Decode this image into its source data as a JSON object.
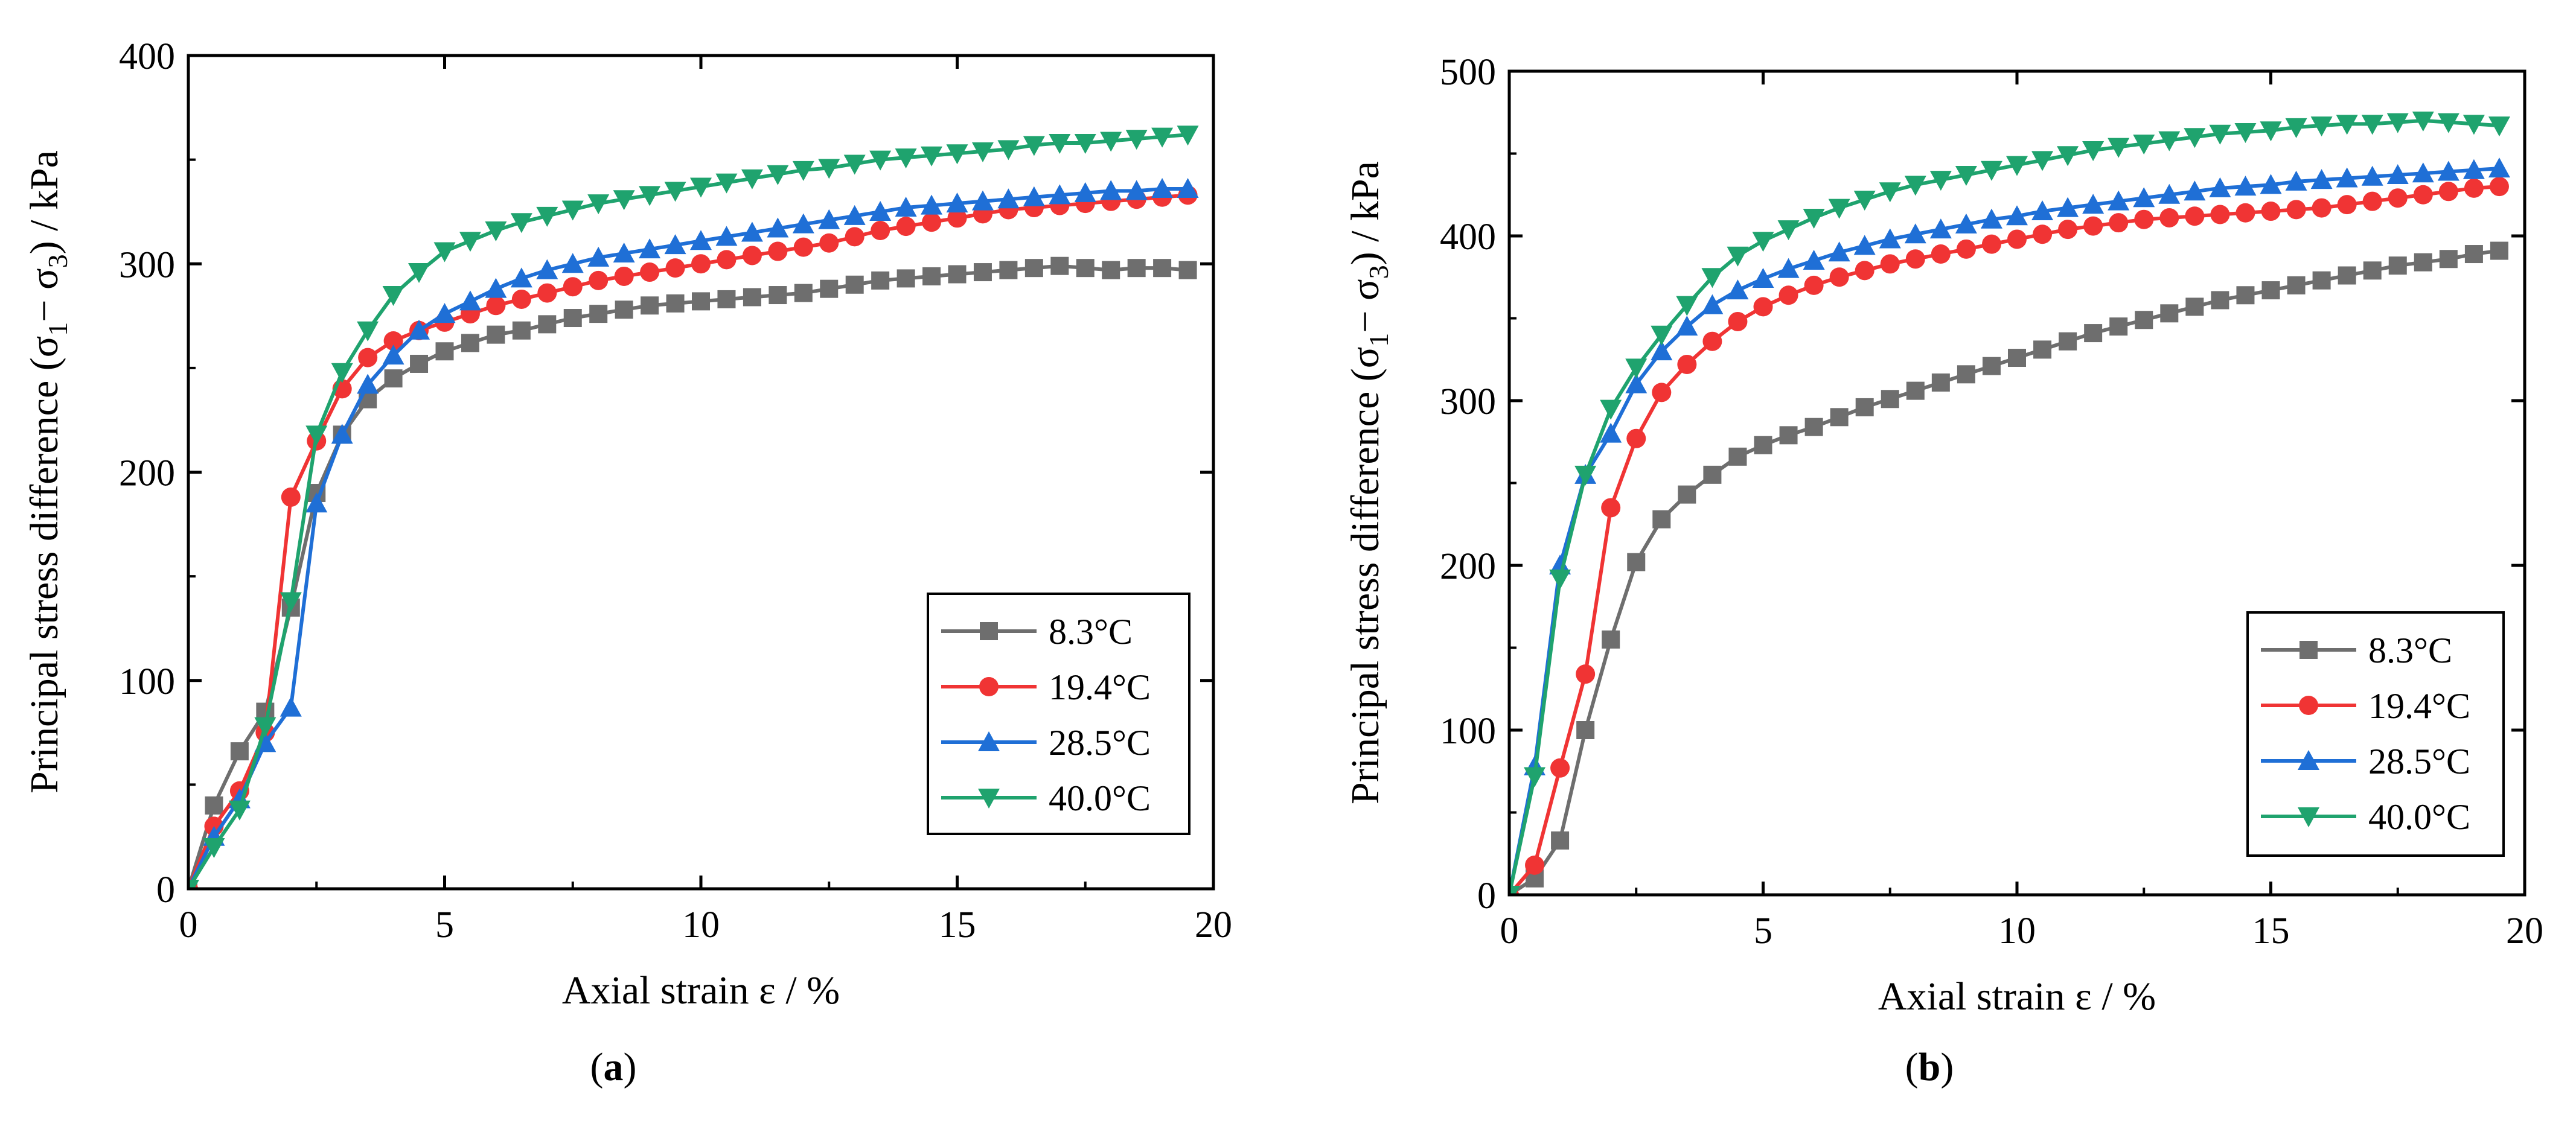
{
  "chart_data": [
    {
      "type": "line",
      "panel": "a",
      "panel_label_open": "(",
      "panel_label_letter": "a",
      "panel_label_close": ")",
      "xlabel": "Axial strain ε / %",
      "ylabel_prefix": "Principal stress difference (σ",
      "ylabel_sub1": "1",
      "ylabel_mid": "− σ",
      "ylabel_sub2": "3",
      "ylabel_suffix": ") / kPa",
      "xlim": [
        0,
        20
      ],
      "ylim": [
        0,
        400
      ],
      "xticks": [
        0,
        5,
        10,
        15,
        20
      ],
      "yticks": [
        0,
        100,
        200,
        300,
        400
      ],
      "legend_position": "lower-right",
      "series": [
        {
          "name": "8.3°C",
          "color": "#6e6e6e",
          "marker": "square",
          "x": [
            0,
            0.5,
            1,
            1.5,
            2,
            2.5,
            3,
            3.5,
            4,
            4.5,
            5,
            5.5,
            6,
            6.5,
            7,
            7.5,
            8,
            8.5,
            9,
            9.5,
            10,
            10.5,
            11,
            11.5,
            12,
            12.5,
            13,
            13.5,
            14,
            14.5,
            15,
            15.5,
            16,
            16.5,
            17,
            17.5,
            18,
            18.5,
            19,
            19.5
          ],
          "y": [
            0,
            40,
            66,
            85,
            135,
            190,
            218,
            235,
            245,
            252,
            258,
            262,
            266,
            268,
            271,
            274,
            276,
            278,
            280,
            281,
            282,
            283,
            284,
            285,
            286,
            288,
            290,
            292,
            293,
            294,
            295,
            296,
            297,
            298,
            299,
            298,
            297,
            298,
            298,
            297
          ]
        },
        {
          "name": "19.4°C",
          "color": "#f03434",
          "marker": "circle",
          "x": [
            0,
            0.5,
            1,
            1.5,
            2,
            2.5,
            3,
            3.5,
            4,
            4.5,
            5,
            5.5,
            6,
            6.5,
            7,
            7.5,
            8,
            8.5,
            9,
            9.5,
            10,
            10.5,
            11,
            11.5,
            12,
            12.5,
            13,
            13.5,
            14,
            14.5,
            15,
            15.5,
            16,
            16.5,
            17,
            17.5,
            18,
            18.5,
            19,
            19.5
          ],
          "y": [
            0,
            30,
            47,
            75,
            188,
            215,
            240,
            255,
            263,
            268,
            272,
            276,
            280,
            283,
            286,
            289,
            292,
            294,
            296,
            298,
            300,
            302,
            304,
            306,
            308,
            310,
            313,
            316,
            318,
            320,
            322,
            324,
            326,
            327,
            328,
            329,
            330,
            331,
            332,
            333
          ]
        },
        {
          "name": "28.5°C",
          "color": "#1f6fd6",
          "marker": "triangle-up",
          "x": [
            0,
            0.5,
            1,
            1.5,
            2,
            2.5,
            3,
            3.5,
            4,
            4.5,
            5,
            5.5,
            6,
            6.5,
            7,
            7.5,
            8,
            8.5,
            9,
            9.5,
            10,
            10.5,
            11,
            11.5,
            12,
            12.5,
            13,
            13.5,
            14,
            14.5,
            15,
            15.5,
            16,
            16.5,
            17,
            17.5,
            18,
            18.5,
            19,
            19.5
          ],
          "y": [
            0,
            25,
            43,
            70,
            87,
            185,
            218,
            242,
            256,
            268,
            276,
            282,
            288,
            293,
            297,
            300,
            303,
            305,
            307,
            309,
            311,
            313,
            315,
            317,
            319,
            321,
            323,
            325,
            327,
            328,
            329,
            330,
            331,
            332,
            333,
            334,
            335,
            335,
            336,
            336
          ]
        },
        {
          "name": "40.0°C",
          "color": "#1fa36e",
          "marker": "triangle-down",
          "x": [
            0,
            0.5,
            1,
            1.5,
            2,
            2.5,
            3,
            3.5,
            4,
            4.5,
            5,
            5.5,
            6,
            6.5,
            7,
            7.5,
            8,
            8.5,
            9,
            9.5,
            10,
            10.5,
            11,
            11.5,
            12,
            12.5,
            13,
            13.5,
            14,
            14.5,
            15,
            15.5,
            16,
            16.5,
            17,
            17.5,
            18,
            18.5,
            19,
            19.5
          ],
          "y": [
            0,
            20,
            38,
            78,
            138,
            218,
            248,
            268,
            285,
            296,
            306,
            311,
            316,
            320,
            323,
            326,
            329,
            331,
            333,
            335,
            337,
            339,
            341,
            343,
            345,
            346,
            348,
            350,
            351,
            352,
            353,
            354,
            355,
            357,
            358,
            358,
            359,
            360,
            361,
            362
          ]
        }
      ]
    },
    {
      "type": "line",
      "panel": "b",
      "panel_label_open": "(",
      "panel_label_letter": "b",
      "panel_label_close": ")",
      "xlabel": "Axial strain ε / %",
      "ylabel_prefix": "Principal stress difference (σ",
      "ylabel_sub1": "1",
      "ylabel_mid": "− σ",
      "ylabel_sub2": "3",
      "ylabel_suffix": ") / kPa",
      "xlim": [
        0,
        20
      ],
      "ylim": [
        0,
        500
      ],
      "xticks": [
        0,
        5,
        10,
        15,
        20
      ],
      "yticks": [
        0,
        100,
        200,
        300,
        400,
        500
      ],
      "legend_position": "lower-right",
      "series": [
        {
          "name": "8.3°C",
          "color": "#6e6e6e",
          "marker": "square",
          "x": [
            0,
            0.5,
            1,
            1.5,
            2,
            2.5,
            3,
            3.5,
            4,
            4.5,
            5,
            5.5,
            6,
            6.5,
            7,
            7.5,
            8,
            8.5,
            9,
            9.5,
            10,
            10.5,
            11,
            11.5,
            12,
            12.5,
            13,
            13.5,
            14,
            14.5,
            15,
            15.5,
            16,
            16.5,
            17,
            17.5,
            18,
            18.5,
            19,
            19.5
          ],
          "y": [
            0,
            10,
            33,
            100,
            155,
            202,
            228,
            243,
            255,
            266,
            273,
            279,
            284,
            290,
            296,
            301,
            306,
            311,
            316,
            321,
            326,
            331,
            336,
            341,
            345,
            349,
            353,
            357,
            361,
            364,
            367,
            370,
            373,
            376,
            379,
            382,
            384,
            386,
            389,
            391
          ]
        },
        {
          "name": "19.4°C",
          "color": "#f03434",
          "marker": "circle",
          "x": [
            0,
            0.5,
            1,
            1.5,
            2,
            2.5,
            3,
            3.5,
            4,
            4.5,
            5,
            5.5,
            6,
            6.5,
            7,
            7.5,
            8,
            8.5,
            9,
            9.5,
            10,
            10.5,
            11,
            11.5,
            12,
            12.5,
            13,
            13.5,
            14,
            14.5,
            15,
            15.5,
            16,
            16.5,
            17,
            17.5,
            18,
            18.5,
            19,
            19.5
          ],
          "y": [
            0,
            18,
            77,
            134,
            235,
            277,
            305,
            322,
            336,
            348,
            357,
            364,
            370,
            375,
            379,
            383,
            386,
            389,
            392,
            395,
            398,
            401,
            404,
            406,
            408,
            410,
            411,
            412,
            413,
            414,
            415,
            416,
            417,
            419,
            421,
            423,
            425,
            427,
            429,
            430
          ]
        },
        {
          "name": "28.5°C",
          "color": "#1f6fd6",
          "marker": "triangle-up",
          "x": [
            0,
            0.5,
            1,
            1.5,
            2,
            2.5,
            3,
            3.5,
            4,
            4.5,
            5,
            5.5,
            6,
            6.5,
            7,
            7.5,
            8,
            8.5,
            9,
            9.5,
            10,
            10.5,
            11,
            11.5,
            12,
            12.5,
            13,
            13.5,
            14,
            14.5,
            15,
            15.5,
            16,
            16.5,
            17,
            17.5,
            18,
            18.5,
            19,
            19.5
          ],
          "y": [
            0,
            78,
            200,
            255,
            280,
            310,
            330,
            345,
            358,
            367,
            374,
            380,
            385,
            390,
            394,
            398,
            401,
            404,
            407,
            410,
            412,
            415,
            417,
            419,
            421,
            423,
            425,
            427,
            429,
            430,
            431,
            433,
            434,
            435,
            436,
            437,
            438,
            439,
            440,
            441
          ]
        },
        {
          "name": "40.0°C",
          "color": "#1fa36e",
          "marker": "triangle-down",
          "x": [
            0,
            0.5,
            1,
            1.5,
            2,
            2.5,
            3,
            3.5,
            4,
            4.5,
            5,
            5.5,
            6,
            6.5,
            7,
            7.5,
            8,
            8.5,
            9,
            9.5,
            10,
            10.5,
            11,
            11.5,
            12,
            12.5,
            13,
            13.5,
            14,
            14.5,
            15,
            15.5,
            16,
            16.5,
            17,
            17.5,
            18,
            18.5,
            19,
            19.5
          ],
          "y": [
            0,
            72,
            192,
            255,
            295,
            320,
            340,
            358,
            375,
            388,
            397,
            404,
            411,
            417,
            422,
            427,
            431,
            434,
            437,
            440,
            443,
            446,
            449,
            452,
            454,
            456,
            458,
            460,
            462,
            463,
            464,
            466,
            467,
            468,
            468,
            469,
            470,
            469,
            468,
            467
          ]
        }
      ]
    }
  ]
}
